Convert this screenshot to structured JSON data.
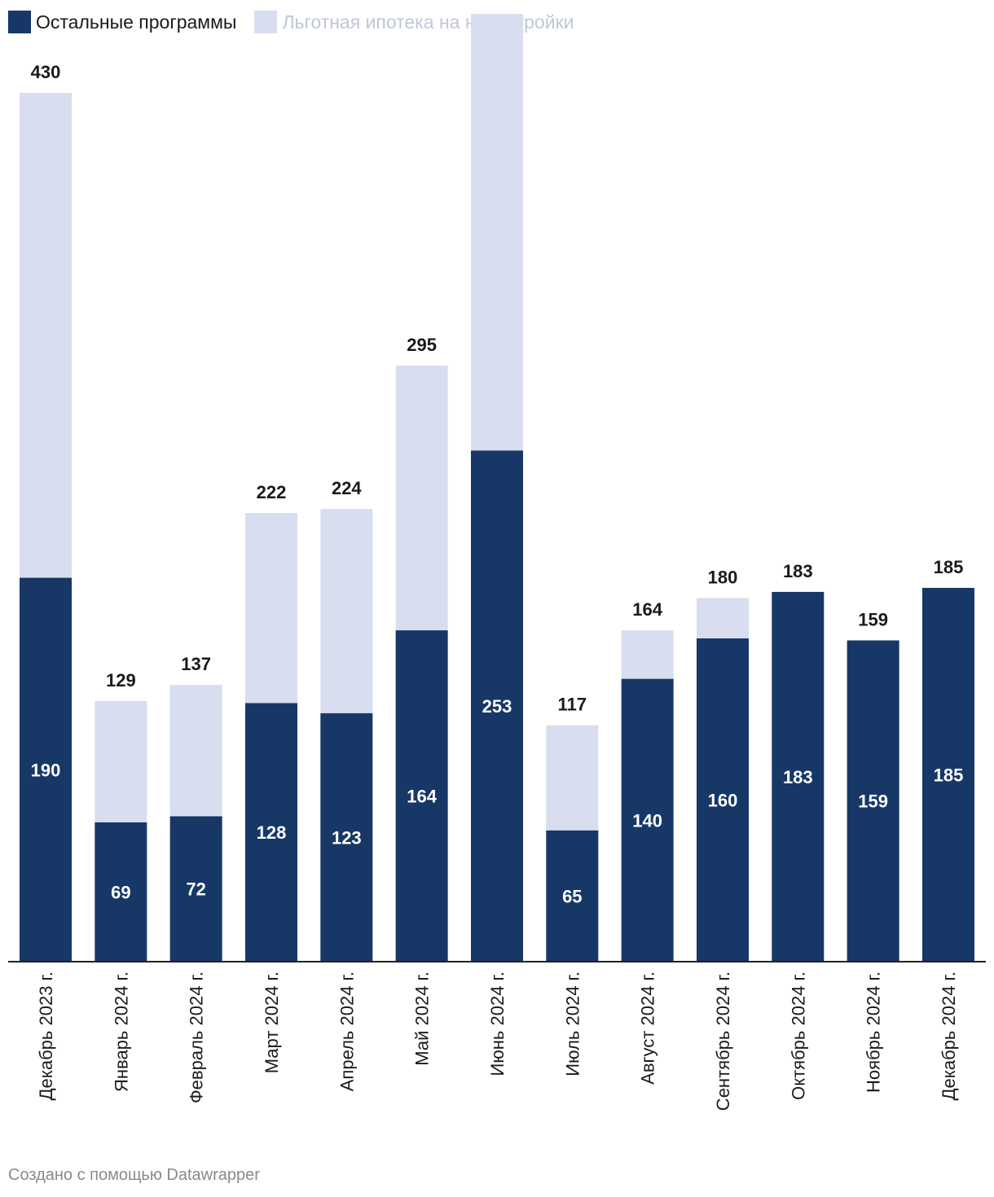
{
  "chart_data": {
    "type": "bar",
    "stacked": true,
    "categories": [
      "Декабрь 2023 г.",
      "Январь 2024 г.",
      "Февраль 2024 г.",
      "Март 2024 г.",
      "Апрель 2024 г.",
      "Май 2024 г.",
      "Июнь 2024 г.",
      "Июль 2024 г.",
      "Август 2024 г.",
      "Сентябрь 2024 г.",
      "Октябрь 2024 г.",
      "Ноябрь 2024 г.",
      "Декабрь 2024 г."
    ],
    "series": [
      {
        "name": "Остальные программы",
        "color": "#173767",
        "values": [
          190,
          69,
          72,
          128,
          123,
          164,
          253,
          65,
          140,
          160,
          183,
          159,
          185
        ]
      },
      {
        "name": "Льготная ипотека на новостройки",
        "color": "#d8ddef",
        "values": [
          240,
          60,
          65,
          94,
          101,
          131,
          216,
          52,
          24,
          20,
          0,
          0,
          0
        ]
      }
    ],
    "totals": [
      430,
      129,
      137,
      222,
      224,
      295,
      469,
      117,
      164,
      180,
      183,
      159,
      185
    ],
    "ylim": [
      0,
      469
    ],
    "legend_position": "top-left",
    "grid": false
  },
  "legend": {
    "item1_label": "Остальные программы",
    "item2_label": "Льготная ипотека на новостройки",
    "item2_label_color": "#bfc6d8"
  },
  "footer": {
    "credit": "Создано с помощью Datawrapper"
  }
}
